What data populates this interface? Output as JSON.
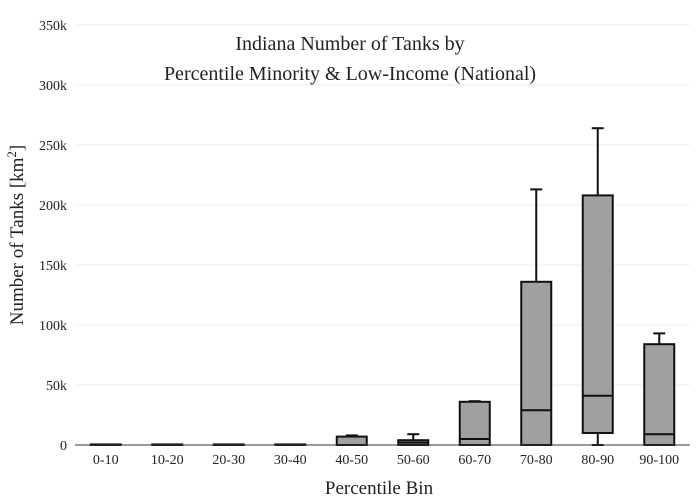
{
  "chart_data": {
    "type": "box",
    "title_lines": [
      "Indiana Number of Tanks by",
      "Percentile Minority & Low-Income (National)"
    ],
    "xlabel": "Percentile Bin",
    "ylabel_main": "Number of Tanks  [km",
    "ylabel_sup": "2",
    "ylabel_end": "]",
    "ylim": [
      0,
      350000
    ],
    "yticks": [
      0,
      50000,
      100000,
      150000,
      200000,
      250000,
      300000,
      350000
    ],
    "ytick_labels": [
      "0",
      "50k",
      "100k",
      "150k",
      "200k",
      "250k",
      "300k",
      "350k"
    ],
    "grid": true,
    "box_color": "#a0a0a0",
    "categories": [
      "0-10",
      "10-20",
      "20-30",
      "30-40",
      "40-50",
      "50-60",
      "60-70",
      "70-80",
      "80-90",
      "90-100"
    ],
    "boxes": [
      {
        "min": 0,
        "q1": 0,
        "median": 0,
        "q3": 0,
        "max": 0
      },
      {
        "min": 0,
        "q1": 0,
        "median": 0,
        "q3": 0,
        "max": 0
      },
      {
        "min": 0,
        "q1": 0,
        "median": 0,
        "q3": 0,
        "max": 0
      },
      {
        "min": 0,
        "q1": 0,
        "median": 0,
        "q3": 0,
        "max": 0
      },
      {
        "min": 0,
        "q1": 0,
        "median": 0,
        "q3": 7000,
        "max": 8000
      },
      {
        "min": 0,
        "q1": 0,
        "median": 2000,
        "q3": 4000,
        "max": 9000
      },
      {
        "min": 0,
        "q1": 0,
        "median": 5000,
        "q3": 36000,
        "max": 36500
      },
      {
        "min": 0,
        "q1": 0,
        "median": 29000,
        "q3": 136000,
        "max": 213000
      },
      {
        "min": 0,
        "q1": 10000,
        "median": 41000,
        "q3": 208000,
        "max": 264000
      },
      {
        "min": 0,
        "q1": 0,
        "median": 9000,
        "q3": 84000,
        "max": 93000
      }
    ]
  }
}
